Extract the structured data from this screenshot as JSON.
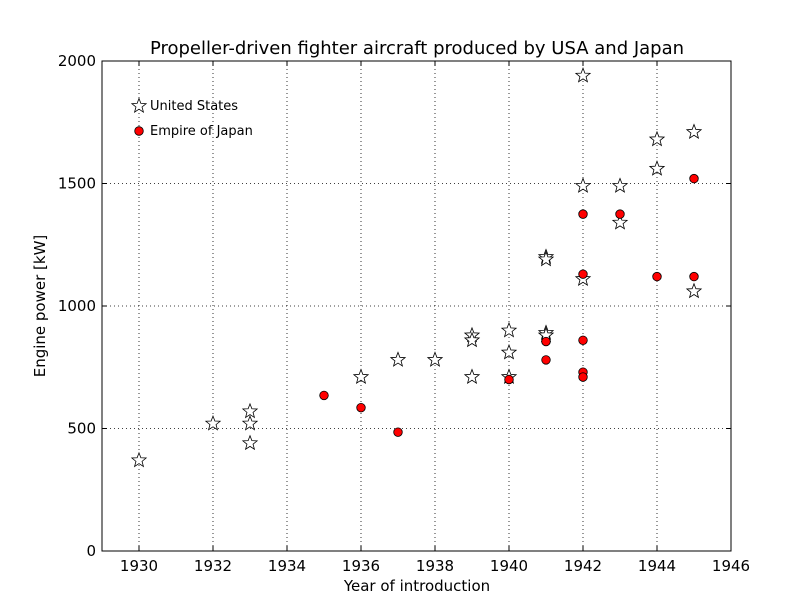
{
  "chart_data": {
    "type": "scatter",
    "title": "Propeller-driven fighter aircraft produced by USA and Japan",
    "xlabel": "Year of introduction",
    "ylabel": "Engine power [kW]",
    "xlim": [
      1929,
      1946
    ],
    "ylim": [
      0,
      2000
    ],
    "xticks": [
      1930,
      1932,
      1934,
      1936,
      1938,
      1940,
      1942,
      1944,
      1946
    ],
    "yticks": [
      0,
      500,
      1000,
      1500,
      2000
    ],
    "grid": true,
    "legend_position": "top-left",
    "series": [
      {
        "name": "United States",
        "marker": "star",
        "color": "#ffffff",
        "points": [
          [
            1930,
            370
          ],
          [
            1932,
            520
          ],
          [
            1933,
            570
          ],
          [
            1933,
            520
          ],
          [
            1933,
            440
          ],
          [
            1936,
            710
          ],
          [
            1937,
            780
          ],
          [
            1938,
            780
          ],
          [
            1939,
            880
          ],
          [
            1939,
            860
          ],
          [
            1939,
            710
          ],
          [
            1940,
            900
          ],
          [
            1940,
            810
          ],
          [
            1940,
            710
          ],
          [
            1941,
            890
          ],
          [
            1941,
            880
          ],
          [
            1941,
            1200
          ],
          [
            1941,
            1190
          ],
          [
            1942,
            1940
          ],
          [
            1942,
            1490
          ],
          [
            1942,
            1110
          ],
          [
            1943,
            1490
          ],
          [
            1943,
            1340
          ],
          [
            1944,
            1680
          ],
          [
            1944,
            1560
          ],
          [
            1945,
            1710
          ],
          [
            1945,
            1060
          ]
        ]
      },
      {
        "name": "Empire of Japan",
        "marker": "circle",
        "color": "#ff0000",
        "points": [
          [
            1935,
            635
          ],
          [
            1936,
            585
          ],
          [
            1937,
            485
          ],
          [
            1940,
            700
          ],
          [
            1941,
            855
          ],
          [
            1941,
            780
          ],
          [
            1942,
            1375
          ],
          [
            1942,
            1130
          ],
          [
            1942,
            860
          ],
          [
            1942,
            730
          ],
          [
            1942,
            710
          ],
          [
            1943,
            1375
          ],
          [
            1944,
            1120
          ],
          [
            1945,
            1520
          ],
          [
            1945,
            1120
          ]
        ]
      }
    ]
  }
}
